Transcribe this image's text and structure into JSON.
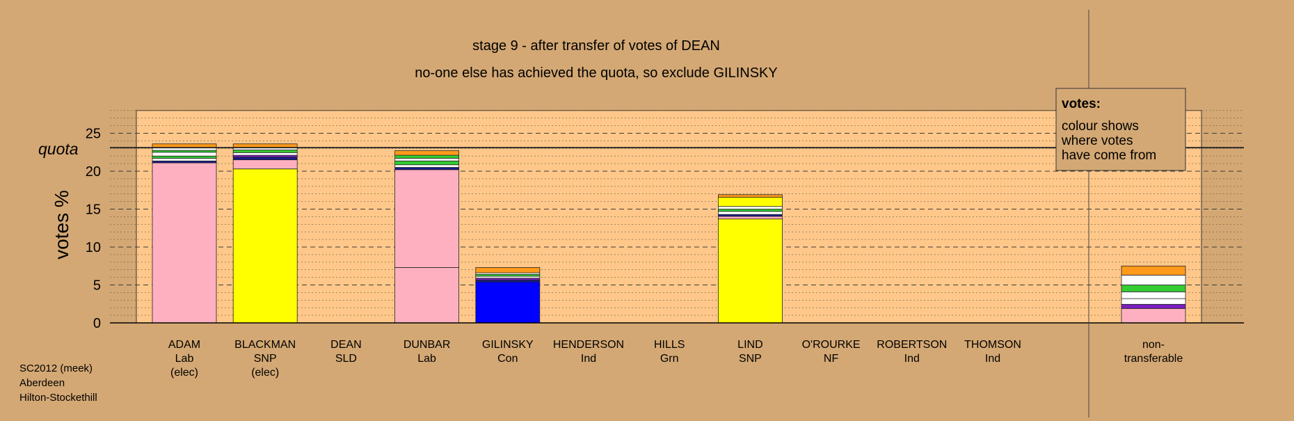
{
  "title": "stage 9 - after transfer of votes of DEAN",
  "subtitle": "no-one else has achieved the quota, so exclude GILINSKY",
  "legend": {
    "heading": "votes:",
    "lines": [
      "colour shows",
      "where votes",
      "have come from"
    ]
  },
  "footer": {
    "lines": [
      "SC2012 (meek)",
      "Aberdeen",
      "Hilton-Stockethill"
    ]
  },
  "chart_data": {
    "type": "bar",
    "stacked": true,
    "ylabel": "votes %",
    "ylim": [
      0,
      28
    ],
    "yticks": [
      0,
      5,
      10,
      15,
      20,
      25
    ],
    "quota": 23.1,
    "quota_label": "quota",
    "grid": true,
    "legend_placement": "top-right",
    "categories": [
      {
        "name": "ADAM",
        "party": "Lab",
        "status": "(elec)"
      },
      {
        "name": "BLACKMAN",
        "party": "SNP",
        "status": "(elec)"
      },
      {
        "name": "DEAN",
        "party": "SLD",
        "status": ""
      },
      {
        "name": "DUNBAR",
        "party": "Lab",
        "status": ""
      },
      {
        "name": "GILINSKY",
        "party": "Con",
        "status": ""
      },
      {
        "name": "HENDERSON",
        "party": "Ind",
        "status": ""
      },
      {
        "name": "HILLS",
        "party": "Grn",
        "status": ""
      },
      {
        "name": "LIND",
        "party": "SNP",
        "status": ""
      },
      {
        "name": "O'ROURKE",
        "party": "NF",
        "status": ""
      },
      {
        "name": "ROBERTSON",
        "party": "Ind",
        "status": ""
      },
      {
        "name": "THOMSON",
        "party": "Ind",
        "status": ""
      }
    ],
    "nontransferable_label": [
      "non-",
      "transferable"
    ],
    "stacks": [
      [
        {
          "value": 21.1,
          "color": "#ffb0c0"
        },
        {
          "value": 0.25,
          "color": "#1a1a8c"
        },
        {
          "value": 0.35,
          "color": "#ffffff"
        },
        {
          "value": 0.3,
          "color": "#33cc33"
        },
        {
          "value": 0.5,
          "color": "#ffffff"
        },
        {
          "value": 0.25,
          "color": "#33cc33"
        },
        {
          "value": 0.35,
          "color": "#ffffff"
        },
        {
          "value": 0.5,
          "color": "#ff9a1a"
        }
      ],
      [
        {
          "value": 20.3,
          "color": "#ffff00"
        },
        {
          "value": 1.2,
          "color": "#ffb0c0"
        },
        {
          "value": 0.35,
          "color": "#1a1a8c"
        },
        {
          "value": 0.25,
          "color": "#7a1fc0"
        },
        {
          "value": 0.35,
          "color": "#ffffff"
        },
        {
          "value": 0.35,
          "color": "#33cc33"
        },
        {
          "value": 0.3,
          "color": "#ffffff"
        },
        {
          "value": 0.5,
          "color": "#ff9a1a"
        }
      ],
      [],
      [
        {
          "value": 7.3,
          "color": "#ffb0c0"
        },
        {
          "value": 12.9,
          "color": "#ffb0c0"
        },
        {
          "value": 0.3,
          "color": "#1a1a8c"
        },
        {
          "value": 0.35,
          "color": "#ffffff"
        },
        {
          "value": 0.5,
          "color": "#33cc33"
        },
        {
          "value": 0.35,
          "color": "#ffffff"
        },
        {
          "value": 0.4,
          "color": "#33cc33"
        },
        {
          "value": 0.6,
          "color": "#ff9a1a"
        }
      ],
      [
        {
          "value": 5.4,
          "color": "#0000ff"
        },
        {
          "value": 0.25,
          "color": "#1a1a8c"
        },
        {
          "value": 0.25,
          "color": "#7a1fc0"
        },
        {
          "value": 0.25,
          "color": "#ffffff"
        },
        {
          "value": 0.25,
          "color": "#33cc33"
        },
        {
          "value": 0.2,
          "color": "#ffffff"
        },
        {
          "value": 0.7,
          "color": "#ff9a1a"
        }
      ],
      [],
      [],
      [
        {
          "value": 13.7,
          "color": "#ffff00"
        },
        {
          "value": 0.35,
          "color": "#ffb0c0"
        },
        {
          "value": 0.25,
          "color": "#1a1a8c"
        },
        {
          "value": 0.4,
          "color": "#ffffff"
        },
        {
          "value": 0.3,
          "color": "#33cc33"
        },
        {
          "value": 0.35,
          "color": "#ffffff"
        },
        {
          "value": 1.2,
          "color": "#ffff00"
        },
        {
          "value": 0.35,
          "color": "#ff9a1a"
        }
      ],
      [],
      [],
      []
    ],
    "nontransferable": [
      {
        "value": 1.9,
        "color": "#ffb0c0"
      },
      {
        "value": 0.55,
        "color": "#7a1fc0"
      },
      {
        "value": 0.75,
        "color": "#ffffff"
      },
      {
        "value": 0.9,
        "color": "#ffffff"
      },
      {
        "value": 0.9,
        "color": "#33cc33"
      },
      {
        "value": 1.3,
        "color": "#ffffff"
      },
      {
        "value": 1.2,
        "color": "#ff9a1a"
      }
    ]
  }
}
